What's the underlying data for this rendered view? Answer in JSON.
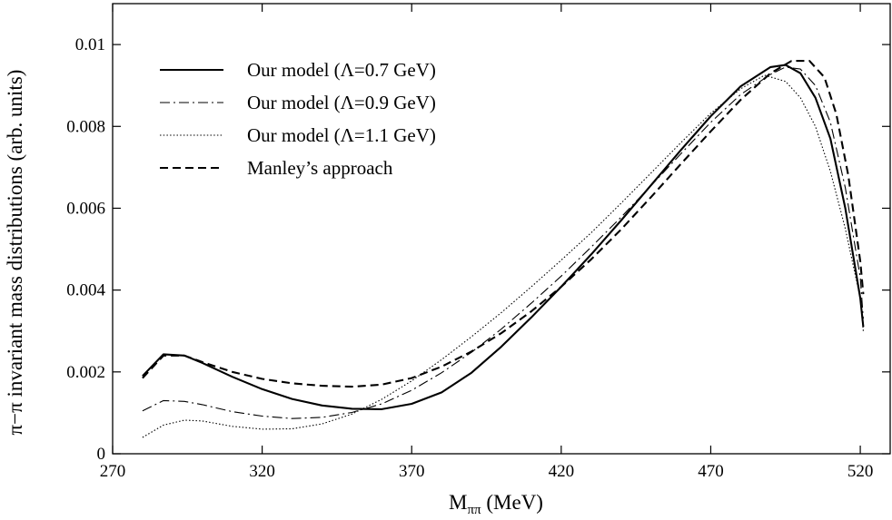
{
  "chart_data": {
    "type": "line",
    "xlabel": "M",
    "xlabel_sub": "ππ",
    "xlabel_unit": " (MeV)",
    "ylabel": "π−π invariant mass distributions (arb. units)",
    "xlim": [
      270,
      530
    ],
    "ylim": [
      0,
      0.011
    ],
    "x_ticks": [
      270,
      320,
      370,
      420,
      470,
      520
    ],
    "x_tick_labels": [
      "270",
      "320",
      "370",
      "420",
      "470",
      "520"
    ],
    "y_ticks": [
      0,
      0.002,
      0.004,
      0.006,
      0.008,
      0.01
    ],
    "y_tick_labels": [
      "0",
      "0.002",
      "0.004",
      "0.006",
      "0.008",
      "0.01"
    ],
    "grid": false,
    "legend_position": "top-left",
    "series": [
      {
        "name": "Our model (Λ=0.7 GeV)",
        "style": "solid",
        "x": [
          280,
          287,
          294,
          300,
          310,
          320,
          330,
          340,
          350,
          360,
          370,
          380,
          390,
          400,
          410,
          420,
          430,
          440,
          450,
          460,
          470,
          480,
          490,
          495,
          500,
          505,
          510,
          515,
          520,
          521
        ],
        "y": [
          0.0019,
          0.00243,
          0.0024,
          0.00222,
          0.00188,
          0.00158,
          0.00134,
          0.00118,
          0.0011,
          0.00109,
          0.00122,
          0.0015,
          0.00198,
          0.00262,
          0.00333,
          0.00408,
          0.00487,
          0.0057,
          0.00656,
          0.00742,
          0.00825,
          0.00898,
          0.00945,
          0.0095,
          0.0093,
          0.0087,
          0.0077,
          0.006,
          0.0038,
          0.0031
        ]
      },
      {
        "name": "Our model (Λ=0.9 GeV)",
        "style": "dash-dot",
        "x": [
          280,
          287,
          294,
          300,
          310,
          320,
          330,
          340,
          350,
          360,
          370,
          380,
          390,
          400,
          410,
          420,
          430,
          440,
          450,
          460,
          470,
          480,
          490,
          495,
          500,
          505,
          510,
          515,
          520,
          521
        ],
        "y": [
          0.00105,
          0.0013,
          0.00128,
          0.0012,
          0.00103,
          0.00092,
          0.00086,
          0.00089,
          0.00101,
          0.00122,
          0.00155,
          0.00198,
          0.00248,
          0.00305,
          0.00368,
          0.00434,
          0.00505,
          0.00578,
          0.00655,
          0.00733,
          0.0081,
          0.00878,
          0.00927,
          0.00945,
          0.0094,
          0.009,
          0.0081,
          0.0065,
          0.0043,
          0.0033
        ]
      },
      {
        "name": "Our model (Λ=1.1 GeV)",
        "style": "dotted",
        "x": [
          280,
          287,
          294,
          300,
          310,
          320,
          330,
          340,
          350,
          360,
          370,
          380,
          390,
          400,
          410,
          420,
          430,
          440,
          450,
          460,
          470,
          480,
          488,
          495,
          500,
          505,
          510,
          515,
          520,
          521
        ],
        "y": [
          0.0004,
          0.0007,
          0.00082,
          0.0008,
          0.00067,
          0.0006,
          0.00061,
          0.00073,
          0.00097,
          0.00133,
          0.00178,
          0.0023,
          0.00286,
          0.00345,
          0.00408,
          0.00473,
          0.0054,
          0.00612,
          0.00686,
          0.0076,
          0.00832,
          0.00892,
          0.00925,
          0.0091,
          0.0087,
          0.008,
          0.0069,
          0.0055,
          0.0038,
          0.003
        ]
      },
      {
        "name": "Manley’s approach",
        "style": "dashed",
        "x": [
          280,
          287,
          294,
          300,
          310,
          320,
          330,
          340,
          350,
          360,
          370,
          380,
          390,
          400,
          410,
          420,
          430,
          440,
          450,
          460,
          470,
          480,
          490,
          497,
          503,
          508,
          512,
          516,
          520,
          521
        ],
        "y": [
          0.00185,
          0.0024,
          0.0024,
          0.00224,
          0.002,
          0.00183,
          0.00172,
          0.00166,
          0.00164,
          0.00169,
          0.00185,
          0.00213,
          0.0025,
          0.00295,
          0.00348,
          0.00408,
          0.00475,
          0.00548,
          0.00627,
          0.00708,
          0.00788,
          0.00865,
          0.0093,
          0.0096,
          0.0096,
          0.0092,
          0.0083,
          0.0068,
          0.0047,
          0.0039
        ]
      }
    ]
  }
}
